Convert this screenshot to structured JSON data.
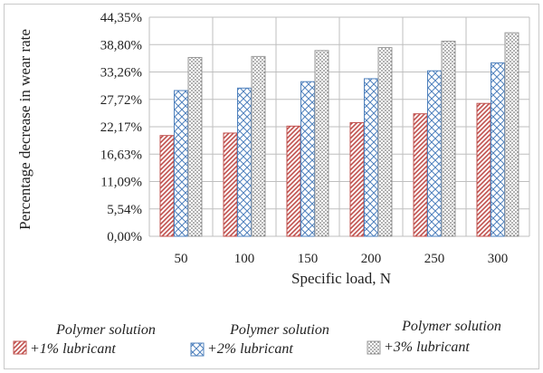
{
  "chart_data": {
    "type": "bar",
    "title": "",
    "xlabel": "Specific load, N",
    "ylabel": "Percentage decrease in wear rate",
    "categories": [
      "50",
      "100",
      "150",
      "200",
      "250",
      "300"
    ],
    "yticks": [
      "0,00%",
      "5,54%",
      "11,09%",
      "16,63%",
      "22,17%",
      "27,72%",
      "33,26%",
      "38,80%",
      "44,35%"
    ],
    "ylim": [
      0,
      44.35
    ],
    "grid": true,
    "legend_position": "bottom",
    "series": [
      {
        "name_line1": "Polymer solution",
        "name_line2": "+1% lubricant",
        "pattern": "diag",
        "color": "#c0504d",
        "values": [
          20.4,
          20.9,
          22.3,
          23.0,
          24.8,
          26.9
        ]
      },
      {
        "name_line1": "Polymer solution",
        "name_line2": "+2% lubricant",
        "pattern": "cross",
        "color": "#4f81bd",
        "values": [
          29.5,
          30.0,
          31.3,
          31.9,
          33.5,
          35.1
        ]
      },
      {
        "name_line1": "Polymer solution",
        "name_line2": "+3% lubricant",
        "pattern": "dots",
        "color": "#9a9a9a",
        "values": [
          36.2,
          36.4,
          37.6,
          38.2,
          39.5,
          41.2
        ]
      }
    ]
  }
}
